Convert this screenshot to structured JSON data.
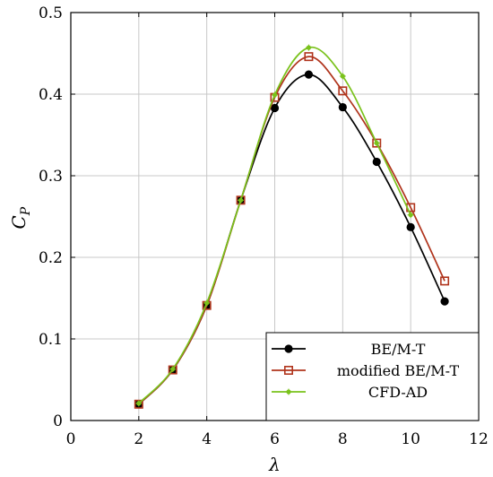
{
  "chart_data": {
    "type": "line",
    "xlabel": "λ",
    "ylabel_main": "C",
    "ylabel_sub": "P",
    "xlim": [
      0,
      12
    ],
    "ylim": [
      0,
      0.5
    ],
    "xticks": [
      "0",
      "2",
      "4",
      "6",
      "8",
      "10",
      "12"
    ],
    "yticks": [
      "0",
      "0.1",
      "0.2",
      "0.3",
      "0.4",
      "0.5"
    ],
    "grid": true,
    "legend_position": "bottom-right",
    "series": [
      {
        "name": "BE/M-T",
        "color": "#000000",
        "marker": "filled-circle",
        "x": [
          2,
          3,
          4,
          5,
          6,
          7,
          8,
          9,
          10,
          11
        ],
        "y": [
          0.02,
          0.062,
          0.141,
          0.27,
          0.383,
          0.424,
          0.384,
          0.317,
          0.237,
          0.146
        ]
      },
      {
        "name": "modified BE/M-T",
        "color": "#b0341c",
        "marker": "open-square",
        "x": [
          2,
          3,
          4,
          5,
          6,
          7,
          8,
          9,
          10,
          11
        ],
        "y": [
          0.02,
          0.062,
          0.141,
          0.27,
          0.396,
          0.446,
          0.404,
          0.34,
          0.261,
          0.171
        ]
      },
      {
        "name": "CFD-AD",
        "color": "#7ac21c",
        "marker": "small-star",
        "x": [
          2,
          3,
          4,
          5,
          6,
          7,
          8,
          9,
          10
        ],
        "y": [
          0.021,
          0.063,
          0.144,
          0.27,
          0.399,
          0.457,
          0.422,
          0.34,
          0.252
        ]
      }
    ]
  }
}
